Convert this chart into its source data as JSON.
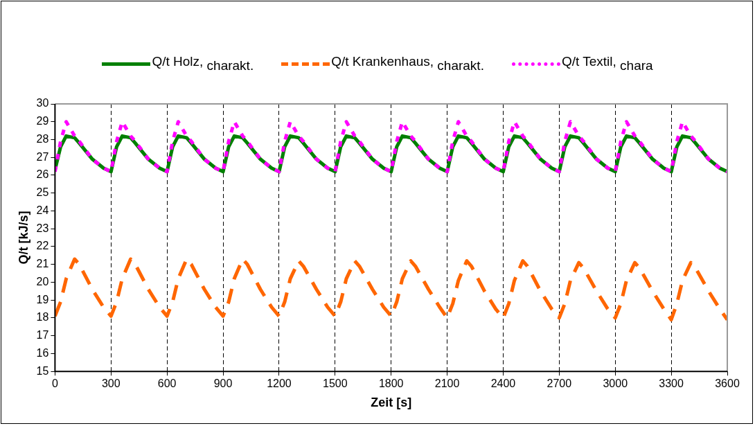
{
  "chart_data": {
    "type": "line",
    "xlabel": "Zeit [s]",
    "ylabel": "Q/t [kJ/s]",
    "x": [
      0,
      30,
      60,
      105,
      130,
      200,
      260,
      300,
      330,
      360,
      405,
      430,
      500,
      560,
      600,
      630,
      660,
      705,
      730,
      800,
      860,
      900,
      930,
      960,
      1005,
      1030,
      1100,
      1160,
      1200,
      1230,
      1260,
      1305,
      1330,
      1400,
      1460,
      1500,
      1530,
      1560,
      1605,
      1630,
      1700,
      1760,
      1800,
      1830,
      1860,
      1905,
      1930,
      2000,
      2060,
      2100,
      2130,
      2160,
      2205,
      2230,
      2300,
      2360,
      2400,
      2430,
      2460,
      2505,
      2530,
      2600,
      2660,
      2700,
      2730,
      2760,
      2805,
      2830,
      2900,
      2960,
      3000,
      3030,
      3060,
      3105,
      3130,
      3200,
      3260,
      3300,
      3330,
      3360,
      3405,
      3430,
      3500,
      3560,
      3600
    ],
    "series": [
      {
        "name": "Q/t Holz, $_{charakt.}$",
        "color": "#008000",
        "line_style": "solid",
        "values": [
          26.3,
          27.6,
          28.2,
          28.1,
          27.8,
          26.9,
          26.4,
          26.2,
          27.6,
          28.2,
          28.1,
          27.8,
          26.9,
          26.4,
          26.2,
          27.6,
          28.2,
          28.1,
          27.8,
          26.9,
          26.4,
          26.2,
          27.6,
          28.2,
          28.1,
          27.8,
          26.9,
          26.4,
          26.2,
          27.6,
          28.2,
          28.1,
          27.8,
          26.9,
          26.4,
          26.2,
          27.6,
          28.2,
          28.1,
          27.8,
          26.9,
          26.4,
          26.2,
          27.6,
          28.2,
          28.1,
          27.8,
          26.9,
          26.4,
          26.2,
          27.6,
          28.2,
          28.1,
          27.8,
          26.9,
          26.4,
          26.2,
          27.6,
          28.2,
          28.1,
          27.8,
          26.9,
          26.4,
          26.2,
          27.6,
          28.2,
          28.1,
          27.8,
          26.9,
          26.4,
          26.2,
          27.6,
          28.2,
          28.1,
          27.8,
          26.9,
          26.4,
          26.2,
          27.6,
          28.2,
          28.1,
          27.8,
          26.9,
          26.4,
          26.2
        ]
      },
      {
        "name": "Q/t Krankenhaus, $_{charakt.}$",
        "color": "#ff6600",
        "line_style": "dashed",
        "values": [
          18.1,
          18.9,
          20.2,
          21.3,
          21.0,
          19.6,
          18.6,
          18.1,
          18.9,
          20.2,
          21.3,
          21.0,
          19.6,
          18.6,
          18.1,
          18.9,
          20.2,
          21.3,
          21.0,
          19.6,
          18.6,
          18.1,
          18.9,
          20.2,
          21.3,
          21.0,
          19.6,
          18.6,
          18.1,
          18.9,
          20.2,
          21.2,
          20.9,
          19.6,
          18.6,
          18.1,
          18.9,
          20.2,
          21.2,
          20.9,
          19.6,
          18.6,
          18.1,
          18.9,
          20.2,
          21.2,
          20.9,
          19.6,
          18.6,
          18.0,
          18.8,
          20.1,
          21.2,
          20.9,
          19.5,
          18.5,
          18.0,
          18.8,
          20.1,
          21.2,
          20.9,
          19.5,
          18.5,
          18.0,
          18.8,
          20.1,
          21.1,
          20.8,
          19.5,
          18.5,
          18.0,
          18.8,
          20.1,
          21.1,
          20.8,
          19.5,
          18.5,
          17.9,
          18.8,
          20.1,
          21.1,
          20.8,
          19.5,
          18.5,
          17.9
        ]
      },
      {
        "name": "Q/t Textil, $_{chara}$",
        "color": "#ff00ff",
        "line_style": "dotted",
        "values": [
          26.2,
          27.9,
          29.0,
          28.2,
          27.9,
          26.9,
          26.4,
          26.2,
          27.9,
          29.0,
          28.2,
          27.9,
          26.9,
          26.4,
          26.2,
          27.9,
          29.0,
          28.2,
          27.9,
          26.9,
          26.4,
          26.2,
          27.9,
          29.0,
          28.2,
          27.9,
          26.9,
          26.4,
          26.2,
          27.9,
          29.0,
          28.2,
          27.9,
          26.9,
          26.4,
          26.2,
          27.9,
          29.0,
          28.2,
          27.9,
          26.9,
          26.4,
          26.2,
          27.9,
          29.0,
          28.2,
          27.9,
          26.9,
          26.4,
          26.2,
          27.9,
          29.0,
          28.2,
          27.9,
          26.9,
          26.4,
          26.2,
          27.9,
          29.0,
          28.2,
          27.9,
          26.9,
          26.4,
          26.2,
          27.9,
          29.0,
          28.2,
          27.9,
          26.9,
          26.4,
          26.2,
          27.9,
          29.0,
          28.2,
          27.9,
          26.9,
          26.4,
          26.2,
          27.9,
          29.0,
          28.2,
          27.9,
          26.9,
          26.4,
          26.2
        ]
      }
    ],
    "xlim": [
      0,
      3600
    ],
    "xticks": [
      0,
      300,
      600,
      900,
      1200,
      1500,
      1800,
      2100,
      2400,
      2700,
      3000,
      3300,
      3600
    ],
    "ylim": [
      15,
      30
    ],
    "yticks": [
      15,
      16,
      17,
      18,
      19,
      20,
      21,
      22,
      23,
      24,
      25,
      26,
      27,
      28,
      29,
      30
    ],
    "grid": "x",
    "legend": "top",
    "marker": "none"
  }
}
